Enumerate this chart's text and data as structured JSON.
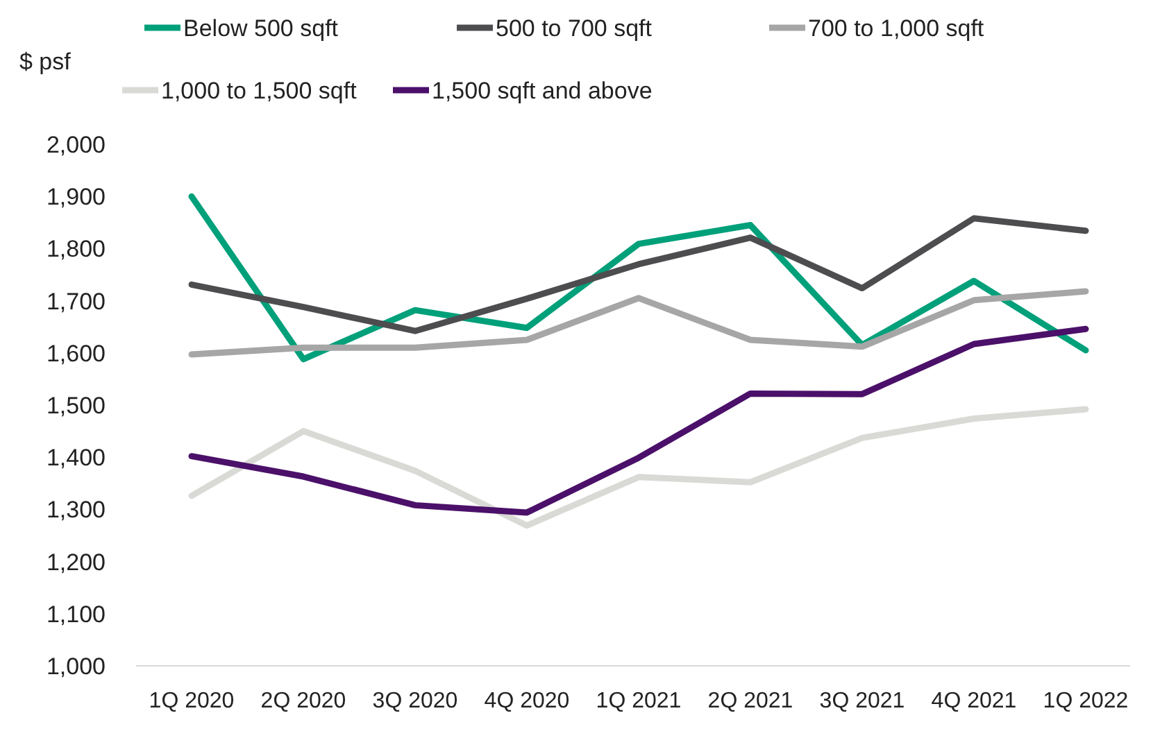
{
  "chart_data": {
    "type": "line",
    "ylabel": "$ psf",
    "categories": [
      "1Q 2020",
      "2Q 2020",
      "3Q 2020",
      "4Q 2020",
      "1Q 2021",
      "2Q 2021",
      "3Q 2021",
      "4Q 2021",
      "1Q 2022"
    ],
    "series": [
      {
        "name": "Below 500 sqft",
        "color": "#00a07a",
        "values": [
          1900,
          1588,
          1682,
          1648,
          1809,
          1845,
          1615,
          1738,
          1605
        ]
      },
      {
        "name": "500 to 700 sqft",
        "color": "#4d4d50",
        "values": [
          1731,
          1688,
          1642,
          1704,
          1770,
          1821,
          1724,
          1858,
          1834
        ]
      },
      {
        "name": "700 to 1,000 sqft",
        "color": "#a6a6a6",
        "values": [
          1597,
          1610,
          1610,
          1625,
          1705,
          1625,
          1612,
          1701,
          1718
        ]
      },
      {
        "name": "1,000 to 1,500 sqft",
        "color": "#d9d9d6",
        "values": [
          1326,
          1450,
          1374,
          1269,
          1362,
          1352,
          1437,
          1474,
          1492
        ]
      },
      {
        "name": "1,500 sqft and above",
        "color": "#4b1069",
        "values": [
          1402,
          1363,
          1308,
          1294,
          1399,
          1522,
          1521,
          1617,
          1646
        ]
      }
    ],
    "ylim": [
      1000,
      2000
    ],
    "yticks": [
      {
        "value": 1000,
        "label": "1,000"
      },
      {
        "value": 1100,
        "label": "1,100"
      },
      {
        "value": 1200,
        "label": "1,200"
      },
      {
        "value": 1300,
        "label": "1,300"
      },
      {
        "value": 1400,
        "label": "1,400"
      },
      {
        "value": 1500,
        "label": "1,500"
      },
      {
        "value": 1600,
        "label": "1,600"
      },
      {
        "value": 1700,
        "label": "1,700"
      },
      {
        "value": 1800,
        "label": "1,800"
      },
      {
        "value": 1900,
        "label": "1,900"
      },
      {
        "value": 2000,
        "label": "2,000"
      }
    ],
    "legend": "top",
    "grid": false,
    "marker": "none",
    "line_style": "solid"
  }
}
